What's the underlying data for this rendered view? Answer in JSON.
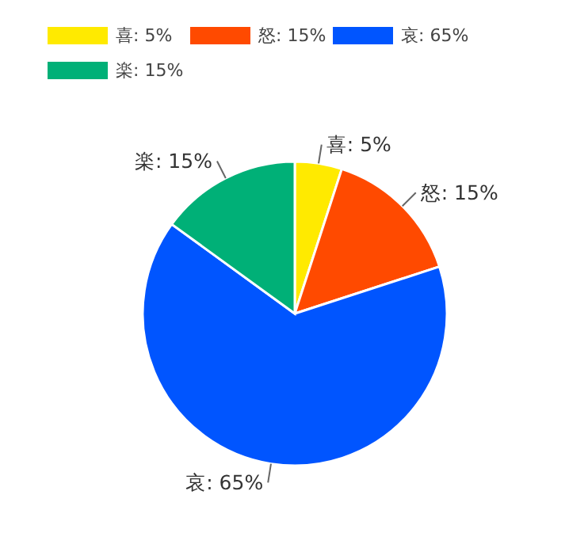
{
  "chart_data": {
    "type": "pie",
    "categories": [
      "喜",
      "怒",
      "哀",
      "楽"
    ],
    "values": [
      5,
      15,
      65,
      15
    ],
    "value_labels": [
      "5%",
      "15%",
      "65%",
      "15%"
    ],
    "colors": [
      "#ffea00",
      "#ff4a00",
      "#0055ff",
      "#00b077"
    ],
    "legend": "top left"
  }
}
